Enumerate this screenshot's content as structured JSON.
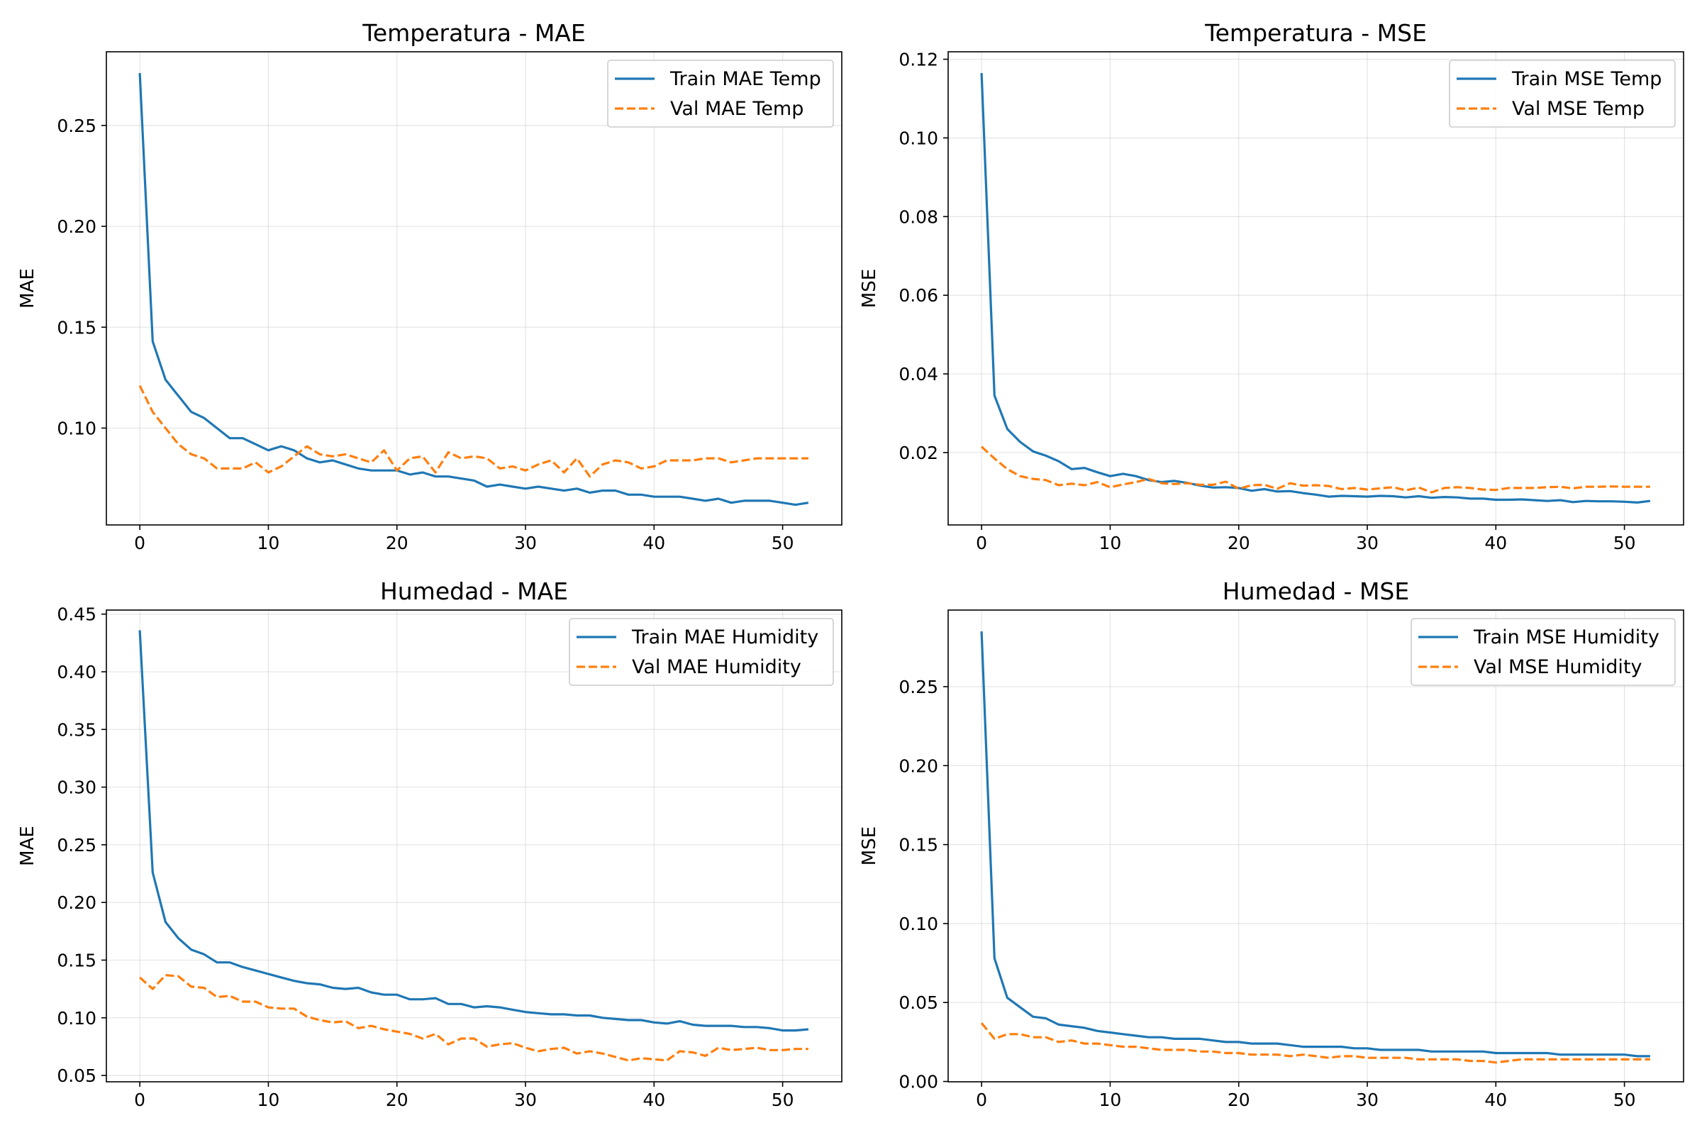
{
  "colors": {
    "train": "#1f77b4",
    "val": "#ff7f0e"
  },
  "chart_data": [
    {
      "type": "line",
      "title": "Temperatura - MAE",
      "xlabel": "",
      "ylabel": "MAE",
      "xlim": [
        -2.6,
        54.6
      ],
      "ylim": [
        0.052,
        0.2865
      ],
      "xticks": [
        0,
        10,
        20,
        30,
        40,
        50
      ],
      "yticks": [
        0.1,
        0.15,
        0.2,
        0.25
      ],
      "ytick_labels": [
        "0.10",
        "0.15",
        "0.20",
        "0.25"
      ],
      "grid": true,
      "legend_position": "top-right",
      "x": [
        0,
        1,
        2,
        3,
        4,
        5,
        6,
        7,
        8,
        9,
        10,
        11,
        12,
        13,
        14,
        15,
        16,
        17,
        18,
        19,
        20,
        21,
        22,
        23,
        24,
        25,
        26,
        27,
        28,
        29,
        30,
        31,
        32,
        33,
        34,
        35,
        36,
        37,
        38,
        39,
        40,
        41,
        42,
        43,
        44,
        45,
        46,
        47,
        48,
        49,
        50,
        51,
        52
      ],
      "series": [
        {
          "name": "Train MAE Temp",
          "style": "solid",
          "color_key": "train",
          "values": [
            0.276,
            0.143,
            0.124,
            0.116,
            0.108,
            0.105,
            0.1,
            0.095,
            0.095,
            0.092,
            0.089,
            0.091,
            0.089,
            0.085,
            0.083,
            0.084,
            0.082,
            0.08,
            0.079,
            0.079,
            0.079,
            0.077,
            0.078,
            0.076,
            0.076,
            0.075,
            0.074,
            0.071,
            0.072,
            0.071,
            0.07,
            0.071,
            0.07,
            0.069,
            0.07,
            0.068,
            0.069,
            0.069,
            0.067,
            0.067,
            0.066,
            0.066,
            0.066,
            0.065,
            0.064,
            0.065,
            0.063,
            0.064,
            0.064,
            0.064,
            0.063,
            0.062,
            0.063
          ]
        },
        {
          "name": "Val MAE Temp",
          "style": "dashed",
          "color_key": "val",
          "values": [
            0.121,
            0.108,
            0.1,
            0.092,
            0.087,
            0.085,
            0.08,
            0.08,
            0.08,
            0.083,
            0.078,
            0.081,
            0.086,
            0.091,
            0.087,
            0.086,
            0.087,
            0.085,
            0.083,
            0.089,
            0.079,
            0.085,
            0.086,
            0.078,
            0.088,
            0.085,
            0.086,
            0.085,
            0.08,
            0.081,
            0.079,
            0.082,
            0.084,
            0.078,
            0.085,
            0.076,
            0.082,
            0.084,
            0.083,
            0.08,
            0.081,
            0.084,
            0.084,
            0.084,
            0.085,
            0.085,
            0.083,
            0.084,
            0.085,
            0.085,
            0.085,
            0.085,
            0.085
          ]
        }
      ]
    },
    {
      "type": "line",
      "title": "Temperatura - MSE",
      "xlabel": "",
      "ylabel": "MSE",
      "xlim": [
        -2.6,
        54.6
      ],
      "ylim": [
        0.0016,
        0.1219
      ],
      "xticks": [
        0,
        10,
        20,
        30,
        40,
        50
      ],
      "yticks": [
        0.02,
        0.04,
        0.06,
        0.08,
        0.1,
        0.12
      ],
      "ytick_labels": [
        "0.02",
        "0.04",
        "0.06",
        "0.08",
        "0.10",
        "0.12"
      ],
      "grid": true,
      "legend_position": "top-right",
      "x": [
        0,
        1,
        2,
        3,
        4,
        5,
        6,
        7,
        8,
        9,
        10,
        11,
        12,
        13,
        14,
        15,
        16,
        17,
        18,
        19,
        20,
        21,
        22,
        23,
        24,
        25,
        26,
        27,
        28,
        29,
        30,
        31,
        32,
        33,
        34,
        35,
        36,
        37,
        38,
        39,
        40,
        41,
        42,
        43,
        44,
        45,
        46,
        47,
        48,
        49,
        50,
        51,
        52
      ],
      "series": [
        {
          "name": "Train MSE Temp",
          "style": "solid",
          "color_key": "train",
          "values": [
            0.1165,
            0.0345,
            0.026,
            0.0227,
            0.0203,
            0.0192,
            0.0178,
            0.0158,
            0.0161,
            0.015,
            0.014,
            0.0146,
            0.014,
            0.013,
            0.0125,
            0.0128,
            0.0123,
            0.0116,
            0.0111,
            0.0112,
            0.011,
            0.0103,
            0.0107,
            0.0101,
            0.0102,
            0.0097,
            0.0093,
            0.0088,
            0.009,
            0.0089,
            0.0088,
            0.009,
            0.0089,
            0.0086,
            0.0089,
            0.0085,
            0.0087,
            0.0086,
            0.0083,
            0.0083,
            0.008,
            0.008,
            0.0081,
            0.0079,
            0.0077,
            0.0079,
            0.0074,
            0.0077,
            0.0076,
            0.0076,
            0.0075,
            0.0073,
            0.0077
          ]
        },
        {
          "name": "Val MSE Temp",
          "style": "dashed",
          "color_key": "val",
          "values": [
            0.0215,
            0.0185,
            0.0158,
            0.014,
            0.0133,
            0.013,
            0.0117,
            0.0121,
            0.0117,
            0.0125,
            0.0112,
            0.0119,
            0.0125,
            0.0133,
            0.0122,
            0.012,
            0.0122,
            0.0118,
            0.0118,
            0.0126,
            0.0108,
            0.0117,
            0.0118,
            0.0108,
            0.0122,
            0.0116,
            0.0117,
            0.0115,
            0.0107,
            0.011,
            0.0106,
            0.0109,
            0.0112,
            0.0104,
            0.0111,
            0.0099,
            0.011,
            0.0112,
            0.011,
            0.0106,
            0.0105,
            0.011,
            0.011,
            0.011,
            0.0112,
            0.0113,
            0.0109,
            0.0113,
            0.0113,
            0.0114,
            0.0113,
            0.0113,
            0.0113
          ]
        }
      ]
    },
    {
      "type": "line",
      "title": "Humedad - MAE",
      "xlabel": "",
      "ylabel": "MAE",
      "xlim": [
        -2.6,
        54.6
      ],
      "ylim": [
        0.0445,
        0.4535
      ],
      "xticks": [
        0,
        10,
        20,
        30,
        40,
        50
      ],
      "yticks": [
        0.05,
        0.1,
        0.15,
        0.2,
        0.25,
        0.3,
        0.35,
        0.4,
        0.45
      ],
      "ytick_labels": [
        "0.05",
        "0.10",
        "0.15",
        "0.20",
        "0.25",
        "0.30",
        "0.35",
        "0.40",
        "0.45"
      ],
      "grid": true,
      "legend_position": "top-right",
      "x": [
        0,
        1,
        2,
        3,
        4,
        5,
        6,
        7,
        8,
        9,
        10,
        11,
        12,
        13,
        14,
        15,
        16,
        17,
        18,
        19,
        20,
        21,
        22,
        23,
        24,
        25,
        26,
        27,
        28,
        29,
        30,
        31,
        32,
        33,
        34,
        35,
        36,
        37,
        38,
        39,
        40,
        41,
        42,
        43,
        44,
        45,
        46,
        47,
        48,
        49,
        50,
        51,
        52
      ],
      "series": [
        {
          "name": "Train MAE Humidity",
          "style": "solid",
          "color_key": "train",
          "values": [
            0.436,
            0.226,
            0.183,
            0.169,
            0.159,
            0.155,
            0.148,
            0.148,
            0.144,
            0.141,
            0.138,
            0.135,
            0.132,
            0.13,
            0.129,
            0.126,
            0.125,
            0.126,
            0.122,
            0.12,
            0.12,
            0.116,
            0.116,
            0.117,
            0.112,
            0.112,
            0.109,
            0.11,
            0.109,
            0.107,
            0.105,
            0.104,
            0.103,
            0.103,
            0.102,
            0.102,
            0.1,
            0.099,
            0.098,
            0.098,
            0.096,
            0.095,
            0.097,
            0.094,
            0.093,
            0.093,
            0.093,
            0.092,
            0.092,
            0.091,
            0.089,
            0.089,
            0.09
          ]
        },
        {
          "name": "Val MAE Humidity",
          "style": "dashed",
          "color_key": "val",
          "values": [
            0.135,
            0.125,
            0.137,
            0.136,
            0.127,
            0.126,
            0.118,
            0.119,
            0.114,
            0.114,
            0.109,
            0.108,
            0.108,
            0.101,
            0.098,
            0.096,
            0.097,
            0.091,
            0.093,
            0.09,
            0.088,
            0.086,
            0.082,
            0.086,
            0.077,
            0.082,
            0.082,
            0.075,
            0.077,
            0.078,
            0.074,
            0.071,
            0.073,
            0.074,
            0.069,
            0.071,
            0.069,
            0.066,
            0.063,
            0.065,
            0.064,
            0.063,
            0.071,
            0.07,
            0.067,
            0.074,
            0.072,
            0.073,
            0.074,
            0.072,
            0.072,
            0.073,
            0.073
          ]
        }
      ]
    },
    {
      "type": "line",
      "title": "Humedad - MSE",
      "xlabel": "",
      "ylabel": "MSE",
      "xlim": [
        -2.6,
        54.6
      ],
      "ylim": [
        -0.0002,
        0.2985
      ],
      "xticks": [
        0,
        10,
        20,
        30,
        40,
        50
      ],
      "yticks": [
        0.0,
        0.05,
        0.1,
        0.15,
        0.2,
        0.25
      ],
      "ytick_labels": [
        "0.00",
        "0.05",
        "0.10",
        "0.15",
        "0.20",
        "0.25"
      ],
      "grid": true,
      "legend_position": "top-right",
      "x": [
        0,
        1,
        2,
        3,
        4,
        5,
        6,
        7,
        8,
        9,
        10,
        11,
        12,
        13,
        14,
        15,
        16,
        17,
        18,
        19,
        20,
        21,
        22,
        23,
        24,
        25,
        26,
        27,
        28,
        29,
        30,
        31,
        32,
        33,
        34,
        35,
        36,
        37,
        38,
        39,
        40,
        41,
        42,
        43,
        44,
        45,
        46,
        47,
        48,
        49,
        50,
        51,
        52
      ],
      "series": [
        {
          "name": "Train MSE Humidity",
          "style": "solid",
          "color_key": "train",
          "values": [
            0.285,
            0.078,
            0.053,
            0.047,
            0.041,
            0.04,
            0.036,
            0.035,
            0.034,
            0.032,
            0.031,
            0.03,
            0.029,
            0.028,
            0.028,
            0.027,
            0.027,
            0.027,
            0.026,
            0.025,
            0.025,
            0.024,
            0.024,
            0.024,
            0.023,
            0.022,
            0.022,
            0.022,
            0.022,
            0.021,
            0.021,
            0.02,
            0.02,
            0.02,
            0.02,
            0.019,
            0.019,
            0.019,
            0.019,
            0.019,
            0.018,
            0.018,
            0.018,
            0.018,
            0.018,
            0.017,
            0.017,
            0.017,
            0.017,
            0.017,
            0.017,
            0.016,
            0.016
          ]
        },
        {
          "name": "Val MSE Humidity",
          "style": "dashed",
          "color_key": "val",
          "values": [
            0.037,
            0.027,
            0.03,
            0.03,
            0.028,
            0.028,
            0.025,
            0.026,
            0.024,
            0.024,
            0.023,
            0.022,
            0.022,
            0.021,
            0.02,
            0.02,
            0.02,
            0.019,
            0.019,
            0.018,
            0.018,
            0.017,
            0.017,
            0.017,
            0.016,
            0.017,
            0.016,
            0.015,
            0.016,
            0.016,
            0.015,
            0.015,
            0.015,
            0.015,
            0.014,
            0.014,
            0.014,
            0.014,
            0.013,
            0.013,
            0.012,
            0.013,
            0.014,
            0.014,
            0.014,
            0.014,
            0.014,
            0.014,
            0.014,
            0.014,
            0.014,
            0.014,
            0.014
          ]
        }
      ]
    }
  ]
}
